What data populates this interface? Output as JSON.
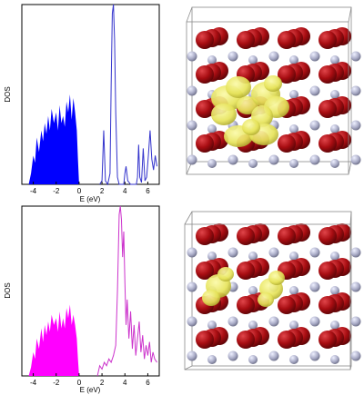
{
  "chart_data": [
    {
      "type": "area",
      "panel": "top",
      "ylabel": "DOS",
      "xlabel": "E (eV)",
      "xlim": [
        -5,
        7
      ],
      "ylim": [
        0,
        1
      ],
      "xticks": [
        -4,
        -2,
        0,
        2,
        4,
        6
      ],
      "xtick_labels": [
        "-4",
        "-2",
        "0",
        "2",
        "4",
        "6"
      ],
      "colors": {
        "valence": "#0000ff",
        "conduction": "#3333cc"
      },
      "series": [
        {
          "fill": true,
          "x": [
            -4.4,
            -4.2,
            -4.0,
            -3.85,
            -3.7,
            -3.5,
            -3.3,
            -3.15,
            -3.0,
            -2.85,
            -2.7,
            -2.55,
            -2.4,
            -2.2,
            -2.0,
            -1.85,
            -1.7,
            -1.55,
            -1.4,
            -1.25,
            -1.1,
            -0.95,
            -0.8,
            -0.65,
            -0.5,
            -0.35,
            -0.2,
            -0.1,
            0.0
          ],
          "y": [
            0,
            0.06,
            0.16,
            0.12,
            0.26,
            0.18,
            0.3,
            0.24,
            0.34,
            0.28,
            0.38,
            0.3,
            0.42,
            0.34,
            0.4,
            0.3,
            0.44,
            0.34,
            0.38,
            0.32,
            0.46,
            0.4,
            0.5,
            0.36,
            0.48,
            0.4,
            0.3,
            0.14,
            0
          ]
        },
        {
          "fill": false,
          "x": [
            1.8,
            2.0,
            2.15,
            2.3,
            2.5,
            2.7,
            2.8,
            2.9,
            3.0,
            3.1,
            3.2,
            3.35,
            3.5,
            3.7,
            3.9,
            4.0,
            4.1,
            4.25,
            4.5,
            4.8,
            5.0,
            5.1,
            5.2,
            5.3,
            5.45,
            5.6,
            5.75,
            5.9,
            6.05,
            6.2,
            6.35,
            6.5,
            6.65,
            6.8
          ],
          "y": [
            0,
            0.02,
            0.3,
            0.02,
            0,
            0.06,
            0.55,
            0.95,
            1.0,
            0.8,
            0.4,
            0.04,
            0,
            0,
            0,
            0.06,
            0.1,
            0.02,
            0,
            0,
            0,
            0.04,
            0.22,
            0.04,
            0.01,
            0.2,
            0.02,
            0.04,
            0.16,
            0.3,
            0.14,
            0.08,
            0.16,
            0.1
          ]
        }
      ]
    },
    {
      "type": "area",
      "panel": "bottom",
      "ylabel": "DOS",
      "xlabel": "E (eV)",
      "xlim": [
        -5,
        7
      ],
      "ylim": [
        0,
        1
      ],
      "xticks": [
        -4,
        -2,
        0,
        2,
        4,
        6
      ],
      "xtick_labels": [
        "-4",
        "-2",
        "0",
        "2",
        "4",
        "6"
      ],
      "colors": {
        "valence": "#ff00ff",
        "conduction": "#cc33cc"
      },
      "series": [
        {
          "fill": true,
          "x": [
            -4.4,
            -4.2,
            -4.0,
            -3.85,
            -3.7,
            -3.5,
            -3.3,
            -3.15,
            -3.0,
            -2.85,
            -2.7,
            -2.55,
            -2.4,
            -2.2,
            -2.0,
            -1.85,
            -1.7,
            -1.55,
            -1.4,
            -1.25,
            -1.1,
            -0.95,
            -0.8,
            -0.65,
            -0.5,
            -0.35,
            -0.2,
            -0.1,
            0.0
          ],
          "y": [
            0,
            0.05,
            0.14,
            0.1,
            0.22,
            0.16,
            0.28,
            0.2,
            0.3,
            0.24,
            0.32,
            0.26,
            0.36,
            0.3,
            0.34,
            0.26,
            0.38,
            0.28,
            0.34,
            0.28,
            0.4,
            0.34,
            0.42,
            0.3,
            0.36,
            0.3,
            0.22,
            0.1,
            0
          ]
        },
        {
          "fill": false,
          "x": [
            1.6,
            1.8,
            2.0,
            2.2,
            2.4,
            2.6,
            2.8,
            3.0,
            3.2,
            3.35,
            3.5,
            3.6,
            3.7,
            3.8,
            3.9,
            4.0,
            4.1,
            4.2,
            4.35,
            4.5,
            4.65,
            4.8,
            4.95,
            5.1,
            5.25,
            5.4,
            5.55,
            5.7,
            5.85,
            6.0,
            6.15,
            6.3,
            6.45,
            6.6,
            6.8
          ],
          "y": [
            0,
            0.06,
            0.04,
            0.08,
            0.06,
            0.1,
            0.08,
            0.12,
            0.18,
            0.5,
            0.95,
            1.0,
            0.92,
            0.7,
            0.85,
            0.55,
            0.3,
            0.45,
            0.22,
            0.38,
            0.16,
            0.3,
            0.12,
            0.22,
            0.32,
            0.14,
            0.24,
            0.1,
            0.18,
            0.12,
            0.2,
            0.08,
            0.14,
            0.1,
            0.08
          ]
        }
      ]
    }
  ],
  "structures": [
    {
      "panel": "top",
      "colors": {
        "oxygen": "#a80d12",
        "cation": "#a9abc6",
        "isosurface": "#e6e35a",
        "box": "#8a8a8a"
      }
    },
    {
      "panel": "bottom",
      "colors": {
        "oxygen": "#a80d12",
        "cation": "#a9abc6",
        "isosurface": "#e6e35a",
        "box": "#8a8a8a"
      }
    }
  ]
}
